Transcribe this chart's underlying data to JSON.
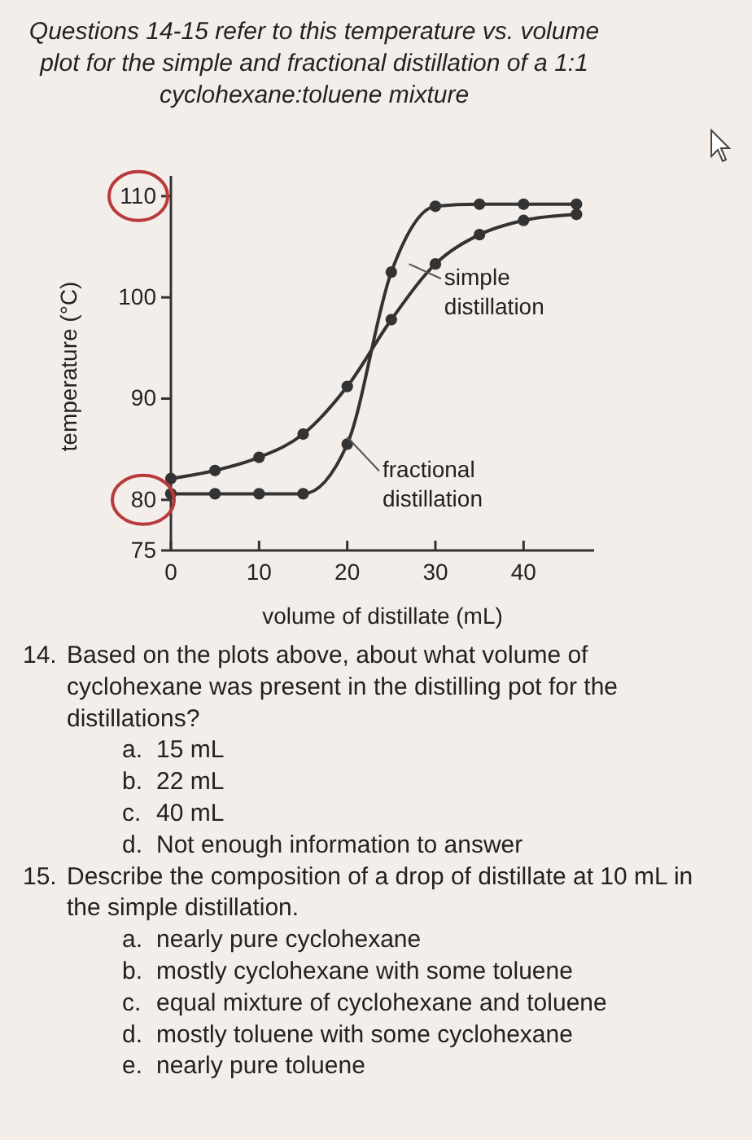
{
  "chart_data": {
    "type": "line",
    "title": "Questions 14-15 refer to this temperature vs. volume plot for the simple and fractional distillation of a 1:1 cyclohexane:toluene mixture",
    "xlabel": "volume of distillate (mL)",
    "ylabel": "temperature (°C)",
    "xlim": [
      0,
      48
    ],
    "xticks": [
      0,
      10,
      20,
      30,
      40
    ],
    "ylim": [
      75,
      112
    ],
    "yticks": [
      75,
      80,
      90,
      100,
      110
    ],
    "marker": "circle",
    "line_style": "solid",
    "grid": false,
    "series": [
      {
        "name": "simple distillation",
        "color": "#333333",
        "x": [
          0,
          5,
          10,
          15,
          20,
          25,
          30,
          35,
          40,
          46
        ],
        "values": [
          82.1,
          82.9,
          84.2,
          86.5,
          91.2,
          97.8,
          103.3,
          106.2,
          107.6,
          108.2
        ]
      },
      {
        "name": "fractional distillation",
        "color": "#333333",
        "x": [
          0,
          5,
          10,
          15,
          20,
          25,
          30,
          35,
          40,
          46
        ],
        "values": [
          80.6,
          80.6,
          80.6,
          80.6,
          85.5,
          102.5,
          109.0,
          109.2,
          109.2,
          109.2
        ]
      }
    ],
    "annotations": [
      "14. Based on the plots above, about what volume of cyclohexane was present in the distilling pot for the distillations?",
      "a. 15 mL",
      "b. 22 mL",
      "c. 40 mL",
      "d. Not enough information to answer",
      "15. Describe the composition of a drop of distillate at 10 mL in the simple distillation.",
      "a. nearly pure cyclohexane",
      "b. mostly cyclohexane with some toluene",
      "c. equal mixture of cyclohexane and toluene",
      "d. mostly toluene with some cyclohexane",
      "e. nearly pure toluene"
    ]
  }
}
